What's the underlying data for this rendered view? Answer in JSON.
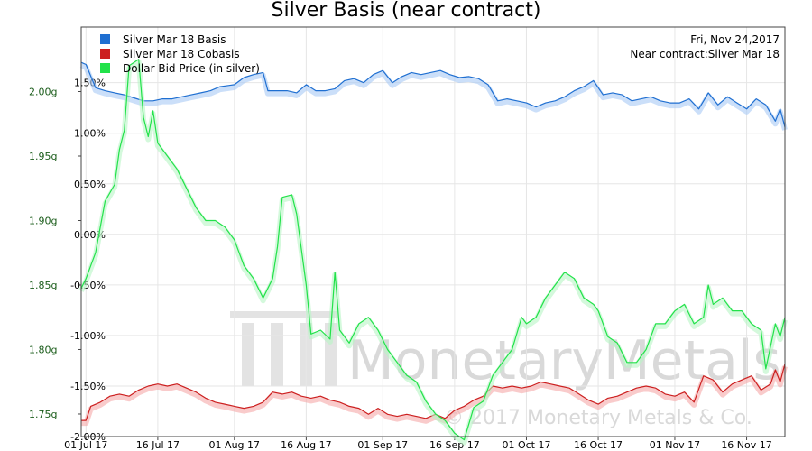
{
  "chart_data": {
    "type": "line",
    "title": "Silver Basis (near contract)",
    "info": {
      "date": "Fri, Nov 24,2017",
      "contract": "Near contract:Silver Mar 18"
    },
    "watermark": {
      "brand": "MonetaryMetals",
      "copyright": "© 2017 Monetary Metals & Co."
    },
    "x_ticks": [
      "01 Jul 17",
      "16 Jul 17",
      "01 Aug 17",
      "16 Aug 17",
      "01 Sep 17",
      "16 Sep 17",
      "01 Oct 17",
      "16 Oct 17",
      "01 Nov 17",
      "16 Nov 17"
    ],
    "x_range": [
      "2017-06-30",
      "2017-11-24"
    ],
    "left_axis": {
      "ticks": [
        "2.00g",
        "1.95g",
        "1.90g",
        "1.85g",
        "1.80g",
        "1.75g"
      ],
      "ylim": [
        1.7325,
        2.05
      ]
    },
    "right_axis": {
      "ticks": [
        "1.50%",
        "1.00%",
        "0.50%",
        "0.00%",
        "-0.50%",
        "-1.00%",
        "-1.50%",
        "-2.00%"
      ],
      "ylim": [
        -2.0,
        2.05
      ]
    },
    "series": [
      {
        "name": "Silver Mar 18 Basis",
        "color": "#1f6fd1",
        "axis": "right",
        "points": [
          [
            "2017-06-30",
            1.7
          ],
          [
            "2017-07-01",
            1.68
          ],
          [
            "2017-07-03",
            1.45
          ],
          [
            "2017-07-05",
            1.42
          ],
          [
            "2017-07-07",
            1.4
          ],
          [
            "2017-07-09",
            1.38
          ],
          [
            "2017-07-11",
            1.35
          ],
          [
            "2017-07-13",
            1.32
          ],
          [
            "2017-07-15",
            1.32
          ],
          [
            "2017-07-17",
            1.34
          ],
          [
            "2017-07-19",
            1.34
          ],
          [
            "2017-07-21",
            1.36
          ],
          [
            "2017-07-23",
            1.38
          ],
          [
            "2017-07-25",
            1.4
          ],
          [
            "2017-07-27",
            1.42
          ],
          [
            "2017-07-29",
            1.46
          ],
          [
            "2017-08-01",
            1.48
          ],
          [
            "2017-08-03",
            1.55
          ],
          [
            "2017-08-05",
            1.58
          ],
          [
            "2017-08-07",
            1.6
          ],
          [
            "2017-08-08",
            1.42
          ],
          [
            "2017-08-10",
            1.42
          ],
          [
            "2017-08-12",
            1.42
          ],
          [
            "2017-08-14",
            1.4
          ],
          [
            "2017-08-16",
            1.48
          ],
          [
            "2017-08-18",
            1.42
          ],
          [
            "2017-08-20",
            1.42
          ],
          [
            "2017-08-22",
            1.44
          ],
          [
            "2017-08-24",
            1.52
          ],
          [
            "2017-08-26",
            1.54
          ],
          [
            "2017-08-28",
            1.5
          ],
          [
            "2017-08-30",
            1.58
          ],
          [
            "2017-09-01",
            1.62
          ],
          [
            "2017-09-03",
            1.5
          ],
          [
            "2017-09-05",
            1.56
          ],
          [
            "2017-09-07",
            1.6
          ],
          [
            "2017-09-09",
            1.58
          ],
          [
            "2017-09-11",
            1.6
          ],
          [
            "2017-09-13",
            1.62
          ],
          [
            "2017-09-15",
            1.58
          ],
          [
            "2017-09-17",
            1.55
          ],
          [
            "2017-09-19",
            1.56
          ],
          [
            "2017-09-21",
            1.54
          ],
          [
            "2017-09-23",
            1.48
          ],
          [
            "2017-09-25",
            1.32
          ],
          [
            "2017-09-27",
            1.34
          ],
          [
            "2017-09-29",
            1.32
          ],
          [
            "2017-10-01",
            1.3
          ],
          [
            "2017-10-03",
            1.26
          ],
          [
            "2017-10-05",
            1.3
          ],
          [
            "2017-10-07",
            1.32
          ],
          [
            "2017-10-09",
            1.36
          ],
          [
            "2017-10-11",
            1.42
          ],
          [
            "2017-10-13",
            1.46
          ],
          [
            "2017-10-15",
            1.52
          ],
          [
            "2017-10-17",
            1.38
          ],
          [
            "2017-10-19",
            1.4
          ],
          [
            "2017-10-21",
            1.38
          ],
          [
            "2017-10-23",
            1.32
          ],
          [
            "2017-10-25",
            1.34
          ],
          [
            "2017-10-27",
            1.36
          ],
          [
            "2017-10-29",
            1.32
          ],
          [
            "2017-10-31",
            1.3
          ],
          [
            "2017-11-02",
            1.3
          ],
          [
            "2017-11-04",
            1.34
          ],
          [
            "2017-11-06",
            1.24
          ],
          [
            "2017-11-08",
            1.4
          ],
          [
            "2017-11-10",
            1.28
          ],
          [
            "2017-11-12",
            1.36
          ],
          [
            "2017-11-14",
            1.3
          ],
          [
            "2017-11-16",
            1.24
          ],
          [
            "2017-11-18",
            1.34
          ],
          [
            "2017-11-20",
            1.28
          ],
          [
            "2017-11-22",
            1.12
          ],
          [
            "2017-11-23",
            1.24
          ],
          [
            "2017-11-24",
            1.06
          ]
        ]
      },
      {
        "name": "Silver Mar 18 Cobasis",
        "color": "#cc1f1f",
        "axis": "right",
        "points": [
          [
            "2017-06-30",
            -1.84
          ],
          [
            "2017-07-01",
            -1.84
          ],
          [
            "2017-07-02",
            -1.7
          ],
          [
            "2017-07-04",
            -1.66
          ],
          [
            "2017-07-06",
            -1.6
          ],
          [
            "2017-07-08",
            -1.58
          ],
          [
            "2017-07-10",
            -1.6
          ],
          [
            "2017-07-12",
            -1.54
          ],
          [
            "2017-07-14",
            -1.5
          ],
          [
            "2017-07-16",
            -1.48
          ],
          [
            "2017-07-18",
            -1.5
          ],
          [
            "2017-07-20",
            -1.48
          ],
          [
            "2017-07-22",
            -1.52
          ],
          [
            "2017-07-24",
            -1.56
          ],
          [
            "2017-07-26",
            -1.62
          ],
          [
            "2017-07-28",
            -1.66
          ],
          [
            "2017-07-30",
            -1.68
          ],
          [
            "2017-08-01",
            -1.7
          ],
          [
            "2017-08-03",
            -1.72
          ],
          [
            "2017-08-05",
            -1.7
          ],
          [
            "2017-08-07",
            -1.66
          ],
          [
            "2017-08-09",
            -1.56
          ],
          [
            "2017-08-11",
            -1.58
          ],
          [
            "2017-08-13",
            -1.56
          ],
          [
            "2017-08-15",
            -1.6
          ],
          [
            "2017-08-17",
            -1.62
          ],
          [
            "2017-08-19",
            -1.6
          ],
          [
            "2017-08-21",
            -1.64
          ],
          [
            "2017-08-23",
            -1.66
          ],
          [
            "2017-08-25",
            -1.7
          ],
          [
            "2017-08-27",
            -1.72
          ],
          [
            "2017-08-29",
            -1.78
          ],
          [
            "2017-08-31",
            -1.72
          ],
          [
            "2017-09-02",
            -1.78
          ],
          [
            "2017-09-04",
            -1.8
          ],
          [
            "2017-09-06",
            -1.78
          ],
          [
            "2017-09-08",
            -1.8
          ],
          [
            "2017-09-10",
            -1.82
          ],
          [
            "2017-09-12",
            -1.78
          ],
          [
            "2017-09-14",
            -1.82
          ],
          [
            "2017-09-16",
            -1.74
          ],
          [
            "2017-09-18",
            -1.7
          ],
          [
            "2017-09-20",
            -1.64
          ],
          [
            "2017-09-22",
            -1.6
          ],
          [
            "2017-09-24",
            -1.5
          ],
          [
            "2017-09-26",
            -1.52
          ],
          [
            "2017-09-28",
            -1.5
          ],
          [
            "2017-09-30",
            -1.52
          ],
          [
            "2017-10-02",
            -1.5
          ],
          [
            "2017-10-04",
            -1.46
          ],
          [
            "2017-10-06",
            -1.48
          ],
          [
            "2017-10-08",
            -1.5
          ],
          [
            "2017-10-10",
            -1.52
          ],
          [
            "2017-10-12",
            -1.58
          ],
          [
            "2017-10-14",
            -1.64
          ],
          [
            "2017-10-16",
            -1.68
          ],
          [
            "2017-10-18",
            -1.62
          ],
          [
            "2017-10-20",
            -1.6
          ],
          [
            "2017-10-22",
            -1.56
          ],
          [
            "2017-10-24",
            -1.52
          ],
          [
            "2017-10-26",
            -1.5
          ],
          [
            "2017-10-28",
            -1.52
          ],
          [
            "2017-10-30",
            -1.58
          ],
          [
            "2017-11-01",
            -1.6
          ],
          [
            "2017-11-03",
            -1.56
          ],
          [
            "2017-11-05",
            -1.66
          ],
          [
            "2017-11-07",
            -1.4
          ],
          [
            "2017-11-09",
            -1.44
          ],
          [
            "2017-11-11",
            -1.56
          ],
          [
            "2017-11-13",
            -1.48
          ],
          [
            "2017-11-15",
            -1.44
          ],
          [
            "2017-11-17",
            -1.4
          ],
          [
            "2017-11-19",
            -1.54
          ],
          [
            "2017-11-21",
            -1.48
          ],
          [
            "2017-11-22",
            -1.34
          ],
          [
            "2017-11-23",
            -1.46
          ],
          [
            "2017-11-24",
            -1.28
          ]
        ]
      },
      {
        "name": "Dollar Bid Price (in silver)",
        "color": "#22e24a",
        "axis": "left",
        "points": [
          [
            "2017-06-30",
            1.8475
          ],
          [
            "2017-07-01",
            1.855
          ],
          [
            "2017-07-03",
            1.875
          ],
          [
            "2017-07-05",
            1.915
          ],
          [
            "2017-07-07",
            1.928
          ],
          [
            "2017-07-08",
            1.955
          ],
          [
            "2017-07-09",
            1.97
          ],
          [
            "2017-07-10",
            2.02
          ],
          [
            "2017-07-12",
            2.025
          ],
          [
            "2017-07-13",
            1.98
          ],
          [
            "2017-07-14",
            1.965
          ],
          [
            "2017-07-15",
            1.985
          ],
          [
            "2017-07-16",
            1.96
          ],
          [
            "2017-07-18",
            1.95
          ],
          [
            "2017-07-20",
            1.94
          ],
          [
            "2017-07-22",
            1.925
          ],
          [
            "2017-07-24",
            1.91
          ],
          [
            "2017-07-26",
            1.9
          ],
          [
            "2017-07-28",
            1.9
          ],
          [
            "2017-07-30",
            1.895
          ],
          [
            "2017-08-01",
            1.885
          ],
          [
            "2017-08-03",
            1.865
          ],
          [
            "2017-08-05",
            1.855
          ],
          [
            "2017-08-07",
            1.84
          ],
          [
            "2017-08-09",
            1.855
          ],
          [
            "2017-08-10",
            1.88
          ],
          [
            "2017-08-11",
            1.918
          ],
          [
            "2017-08-13",
            1.92
          ],
          [
            "2017-08-14",
            1.905
          ],
          [
            "2017-08-16",
            1.85
          ],
          [
            "2017-08-17",
            1.812
          ],
          [
            "2017-08-19",
            1.815
          ],
          [
            "2017-08-21",
            1.808
          ],
          [
            "2017-08-22",
            1.86
          ],
          [
            "2017-08-23",
            1.815
          ],
          [
            "2017-08-25",
            1.805
          ],
          [
            "2017-08-27",
            1.82
          ],
          [
            "2017-08-29",
            1.825
          ],
          [
            "2017-08-31",
            1.815
          ],
          [
            "2017-09-02",
            1.8
          ],
          [
            "2017-09-04",
            1.79
          ],
          [
            "2017-09-06",
            1.78
          ],
          [
            "2017-09-08",
            1.775
          ],
          [
            "2017-09-10",
            1.76
          ],
          [
            "2017-09-12",
            1.75
          ],
          [
            "2017-09-14",
            1.745
          ],
          [
            "2017-09-16",
            1.735
          ],
          [
            "2017-09-18",
            1.73
          ],
          [
            "2017-09-20",
            1.755
          ],
          [
            "2017-09-22",
            1.76
          ],
          [
            "2017-09-24",
            1.78
          ],
          [
            "2017-09-26",
            1.79
          ],
          [
            "2017-09-28",
            1.8
          ],
          [
            "2017-09-30",
            1.825
          ],
          [
            "2017-10-01",
            1.82
          ],
          [
            "2017-10-03",
            1.825
          ],
          [
            "2017-10-05",
            1.84
          ],
          [
            "2017-10-07",
            1.85
          ],
          [
            "2017-10-09",
            1.86
          ],
          [
            "2017-10-11",
            1.855
          ],
          [
            "2017-10-13",
            1.84
          ],
          [
            "2017-10-15",
            1.835
          ],
          [
            "2017-10-16",
            1.83
          ],
          [
            "2017-10-18",
            1.81
          ],
          [
            "2017-10-20",
            1.805
          ],
          [
            "2017-10-22",
            1.79
          ],
          [
            "2017-10-24",
            1.79
          ],
          [
            "2017-10-26",
            1.8
          ],
          [
            "2017-10-28",
            1.82
          ],
          [
            "2017-10-30",
            1.82
          ],
          [
            "2017-11-01",
            1.83
          ],
          [
            "2017-11-03",
            1.835
          ],
          [
            "2017-11-05",
            1.82
          ],
          [
            "2017-11-07",
            1.825
          ],
          [
            "2017-11-08",
            1.85
          ],
          [
            "2017-11-09",
            1.835
          ],
          [
            "2017-11-11",
            1.84
          ],
          [
            "2017-11-13",
            1.83
          ],
          [
            "2017-11-15",
            1.83
          ],
          [
            "2017-11-17",
            1.82
          ],
          [
            "2017-11-19",
            1.815
          ],
          [
            "2017-11-20",
            1.785
          ],
          [
            "2017-11-22",
            1.82
          ],
          [
            "2017-11-23",
            1.81
          ],
          [
            "2017-11-24",
            1.825
          ]
        ]
      }
    ],
    "legend_position": "top-left",
    "grid": true
  }
}
